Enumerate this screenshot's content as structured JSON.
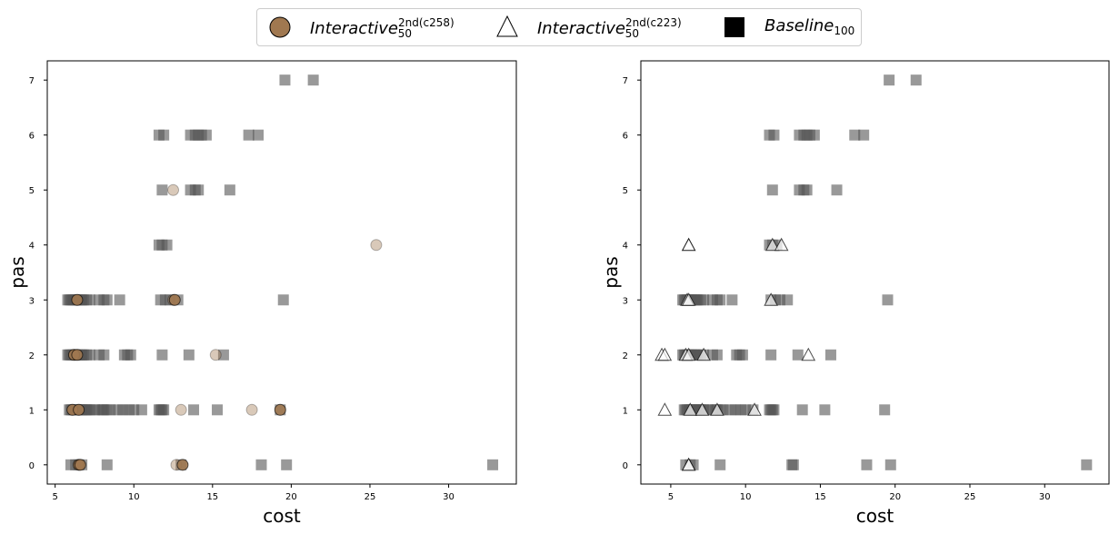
{
  "legend": {
    "items": [
      {
        "base": "Interactive",
        "sup": "2nd(c258)",
        "sub": "50",
        "marker": "circle",
        "color": "#a07850"
      },
      {
        "base": "Interactive",
        "sup": "2nd(c223)",
        "sub": "50",
        "marker": "triangle",
        "color": "#ffffff"
      },
      {
        "base": "Baseline",
        "sup": "",
        "sub": "100",
        "marker": "square",
        "color": "#000000"
      }
    ]
  },
  "chart_data": [
    {
      "type": "scatter",
      "xlabel": "cost",
      "ylabel": "pas",
      "xlim": [
        4.5,
        34.3
      ],
      "ylim": [
        -0.35,
        7.35
      ],
      "xticks": [
        5,
        10,
        15,
        20,
        25,
        30
      ],
      "yticks": [
        0,
        1,
        2,
        3,
        4,
        5,
        6,
        7
      ],
      "series": [
        {
          "legend_ref": 2,
          "marker": "square",
          "color": "#555555",
          "opacity": 0.6,
          "points": [
            [
              6.0,
              0
            ],
            [
              6.3,
              0
            ],
            [
              6.5,
              0
            ],
            [
              6.7,
              0
            ],
            [
              8.3,
              0
            ],
            [
              13.0,
              0
            ],
            [
              18.1,
              0
            ],
            [
              19.7,
              0
            ],
            [
              32.8,
              0
            ],
            [
              5.9,
              1
            ],
            [
              6.0,
              1
            ],
            [
              6.1,
              1
            ],
            [
              6.2,
              1
            ],
            [
              6.3,
              1
            ],
            [
              6.4,
              1
            ],
            [
              6.5,
              1
            ],
            [
              6.6,
              1
            ],
            [
              6.7,
              1
            ],
            [
              6.8,
              1
            ],
            [
              6.9,
              1
            ],
            [
              7.0,
              1
            ],
            [
              7.1,
              1
            ],
            [
              7.2,
              1
            ],
            [
              7.5,
              1
            ],
            [
              7.8,
              1
            ],
            [
              8.0,
              1
            ],
            [
              8.1,
              1
            ],
            [
              8.3,
              1
            ],
            [
              8.5,
              1
            ],
            [
              9.0,
              1
            ],
            [
              9.3,
              1
            ],
            [
              9.7,
              1
            ],
            [
              10.0,
              1
            ],
            [
              10.5,
              1
            ],
            [
              11.6,
              1
            ],
            [
              11.7,
              1
            ],
            [
              11.8,
              1
            ],
            [
              11.9,
              1
            ],
            [
              13.8,
              1
            ],
            [
              15.3,
              1
            ],
            [
              19.3,
              1
            ],
            [
              5.8,
              2
            ],
            [
              5.9,
              2
            ],
            [
              6.0,
              2
            ],
            [
              6.1,
              2
            ],
            [
              6.2,
              2
            ],
            [
              6.3,
              2
            ],
            [
              6.4,
              2
            ],
            [
              6.5,
              2
            ],
            [
              6.6,
              2
            ],
            [
              6.7,
              2
            ],
            [
              6.8,
              2
            ],
            [
              7.0,
              2
            ],
            [
              7.2,
              2
            ],
            [
              7.8,
              2
            ],
            [
              8.1,
              2
            ],
            [
              9.4,
              2
            ],
            [
              9.6,
              2
            ],
            [
              9.8,
              2
            ],
            [
              11.8,
              2
            ],
            [
              13.5,
              2
            ],
            [
              15.7,
              2
            ],
            [
              5.8,
              3
            ],
            [
              5.9,
              3
            ],
            [
              6.0,
              3
            ],
            [
              6.1,
              3
            ],
            [
              6.2,
              3
            ],
            [
              6.3,
              3
            ],
            [
              6.4,
              3
            ],
            [
              6.5,
              3
            ],
            [
              6.6,
              3
            ],
            [
              6.7,
              3
            ],
            [
              6.8,
              3
            ],
            [
              7.0,
              3
            ],
            [
              7.2,
              3
            ],
            [
              7.8,
              3
            ],
            [
              8.1,
              3
            ],
            [
              8.3,
              3
            ],
            [
              9.1,
              3
            ],
            [
              11.7,
              3
            ],
            [
              12.0,
              3
            ],
            [
              12.3,
              3
            ],
            [
              12.8,
              3
            ],
            [
              19.5,
              3
            ],
            [
              11.6,
              4
            ],
            [
              11.8,
              4
            ],
            [
              12.1,
              4
            ],
            [
              11.8,
              5
            ],
            [
              13.6,
              5
            ],
            [
              13.9,
              5
            ],
            [
              14.1,
              5
            ],
            [
              16.1,
              5
            ],
            [
              11.6,
              6
            ],
            [
              11.9,
              6
            ],
            [
              13.6,
              6
            ],
            [
              13.9,
              6
            ],
            [
              14.1,
              6
            ],
            [
              14.3,
              6
            ],
            [
              14.6,
              6
            ],
            [
              17.3,
              6
            ],
            [
              17.9,
              6
            ],
            [
              19.6,
              7
            ],
            [
              21.4,
              7
            ]
          ]
        },
        {
          "legend_ref": 0,
          "marker": "circle",
          "color": "#a07850",
          "points": [
            {
              "x": 6.5,
              "y": 0,
              "a": 0.9
            },
            {
              "x": 6.6,
              "y": 0,
              "a": 0.9
            },
            {
              "x": 12.7,
              "y": 0,
              "a": 0.4
            },
            {
              "x": 13.1,
              "y": 0,
              "a": 0.9
            },
            {
              "x": 6.1,
              "y": 1,
              "a": 0.9
            },
            {
              "x": 6.5,
              "y": 1,
              "a": 0.9
            },
            {
              "x": 13.0,
              "y": 1,
              "a": 0.4
            },
            {
              "x": 17.5,
              "y": 1,
              "a": 0.4
            },
            {
              "x": 19.3,
              "y": 1,
              "a": 0.9
            },
            {
              "x": 6.2,
              "y": 2,
              "a": 0.9
            },
            {
              "x": 6.4,
              "y": 2,
              "a": 0.9
            },
            {
              "x": 15.2,
              "y": 2,
              "a": 0.4
            },
            {
              "x": 6.4,
              "y": 3,
              "a": 0.9
            },
            {
              "x": 12.5,
              "y": 3,
              "a": 0.4
            },
            {
              "x": 12.6,
              "y": 3,
              "a": 0.9
            },
            {
              "x": 25.4,
              "y": 4,
              "a": 0.4
            },
            {
              "x": 12.5,
              "y": 5,
              "a": 0.4
            }
          ]
        }
      ]
    },
    {
      "type": "scatter",
      "xlabel": "cost",
      "ylabel": "pas",
      "xlim": [
        3.0,
        34.3
      ],
      "ylim": [
        -0.35,
        7.35
      ],
      "xticks": [
        5,
        10,
        15,
        20,
        25,
        30
      ],
      "yticks": [
        0,
        1,
        2,
        3,
        4,
        5,
        6,
        7
      ],
      "series": [
        {
          "legend_ref": 2,
          "marker": "square",
          "color": "#555555",
          "opacity": 0.6,
          "points": [
            [
              6.0,
              0
            ],
            [
              6.3,
              0
            ],
            [
              6.5,
              0
            ],
            [
              8.3,
              0
            ],
            [
              13.1,
              0
            ],
            [
              13.2,
              0
            ],
            [
              18.1,
              0
            ],
            [
              19.7,
              0
            ],
            [
              32.8,
              0
            ],
            [
              5.9,
              1
            ],
            [
              6.0,
              1
            ],
            [
              6.1,
              1
            ],
            [
              6.2,
              1
            ],
            [
              6.3,
              1
            ],
            [
              6.4,
              1
            ],
            [
              6.5,
              1
            ],
            [
              6.6,
              1
            ],
            [
              6.7,
              1
            ],
            [
              6.8,
              1
            ],
            [
              6.9,
              1
            ],
            [
              7.0,
              1
            ],
            [
              7.1,
              1
            ],
            [
              7.2,
              1
            ],
            [
              7.5,
              1
            ],
            [
              7.8,
              1
            ],
            [
              8.0,
              1
            ],
            [
              8.1,
              1
            ],
            [
              8.3,
              1
            ],
            [
              8.5,
              1
            ],
            [
              9.0,
              1
            ],
            [
              9.3,
              1
            ],
            [
              9.7,
              1
            ],
            [
              10.0,
              1
            ],
            [
              10.5,
              1
            ],
            [
              11.6,
              1
            ],
            [
              11.7,
              1
            ],
            [
              11.8,
              1
            ],
            [
              11.9,
              1
            ],
            [
              13.8,
              1
            ],
            [
              15.3,
              1
            ],
            [
              19.3,
              1
            ],
            [
              5.8,
              2
            ],
            [
              5.9,
              2
            ],
            [
              6.0,
              2
            ],
            [
              6.1,
              2
            ],
            [
              6.2,
              2
            ],
            [
              6.3,
              2
            ],
            [
              6.4,
              2
            ],
            [
              6.5,
              2
            ],
            [
              6.6,
              2
            ],
            [
              6.7,
              2
            ],
            [
              6.8,
              2
            ],
            [
              7.0,
              2
            ],
            [
              7.2,
              2
            ],
            [
              7.8,
              2
            ],
            [
              8.1,
              2
            ],
            [
              9.4,
              2
            ],
            [
              9.6,
              2
            ],
            [
              9.8,
              2
            ],
            [
              11.7,
              2
            ],
            [
              13.5,
              2
            ],
            [
              15.7,
              2
            ],
            [
              5.8,
              3
            ],
            [
              5.9,
              3
            ],
            [
              6.0,
              3
            ],
            [
              6.1,
              3
            ],
            [
              6.2,
              3
            ],
            [
              6.3,
              3
            ],
            [
              6.4,
              3
            ],
            [
              6.5,
              3
            ],
            [
              6.6,
              3
            ],
            [
              6.7,
              3
            ],
            [
              6.8,
              3
            ],
            [
              7.0,
              3
            ],
            [
              7.2,
              3
            ],
            [
              7.8,
              3
            ],
            [
              8.1,
              3
            ],
            [
              8.3,
              3
            ],
            [
              9.1,
              3
            ],
            [
              11.7,
              3
            ],
            [
              12.0,
              3
            ],
            [
              12.3,
              3
            ],
            [
              12.8,
              3
            ],
            [
              19.5,
              3
            ],
            [
              11.6,
              4
            ],
            [
              11.8,
              4
            ],
            [
              12.1,
              4
            ],
            [
              11.8,
              5
            ],
            [
              13.6,
              5
            ],
            [
              13.9,
              5
            ],
            [
              14.1,
              5
            ],
            [
              16.1,
              5
            ],
            [
              11.6,
              6
            ],
            [
              11.9,
              6
            ],
            [
              13.6,
              6
            ],
            [
              13.9,
              6
            ],
            [
              14.1,
              6
            ],
            [
              14.3,
              6
            ],
            [
              14.6,
              6
            ],
            [
              17.3,
              6
            ],
            [
              17.9,
              6
            ],
            [
              19.6,
              7
            ],
            [
              21.4,
              7
            ]
          ]
        },
        {
          "legend_ref": 1,
          "marker": "triangle",
          "color": "#ffffff",
          "points": [
            {
              "x": 6.2,
              "y": 0,
              "a": 0.9
            },
            {
              "x": 4.6,
              "y": 1,
              "a": 0.7
            },
            {
              "x": 6.3,
              "y": 1,
              "a": 0.7
            },
            {
              "x": 7.1,
              "y": 1,
              "a": 0.7
            },
            {
              "x": 8.1,
              "y": 1,
              "a": 0.7
            },
            {
              "x": 10.6,
              "y": 1,
              "a": 0.7
            },
            {
              "x": 4.4,
              "y": 2,
              "a": 0.7
            },
            {
              "x": 4.6,
              "y": 2,
              "a": 0.7
            },
            {
              "x": 6.0,
              "y": 2,
              "a": 0.7
            },
            {
              "x": 6.2,
              "y": 2,
              "a": 0.7
            },
            {
              "x": 7.2,
              "y": 2,
              "a": 0.7
            },
            {
              "x": 14.2,
              "y": 2,
              "a": 0.7
            },
            {
              "x": 6.1,
              "y": 3,
              "a": 0.7
            },
            {
              "x": 6.2,
              "y": 3,
              "a": 0.7
            },
            {
              "x": 11.7,
              "y": 3,
              "a": 0.7
            },
            {
              "x": 6.2,
              "y": 4,
              "a": 0.9
            },
            {
              "x": 11.8,
              "y": 4,
              "a": 0.7
            },
            {
              "x": 12.4,
              "y": 4,
              "a": 0.7
            }
          ]
        }
      ]
    }
  ]
}
